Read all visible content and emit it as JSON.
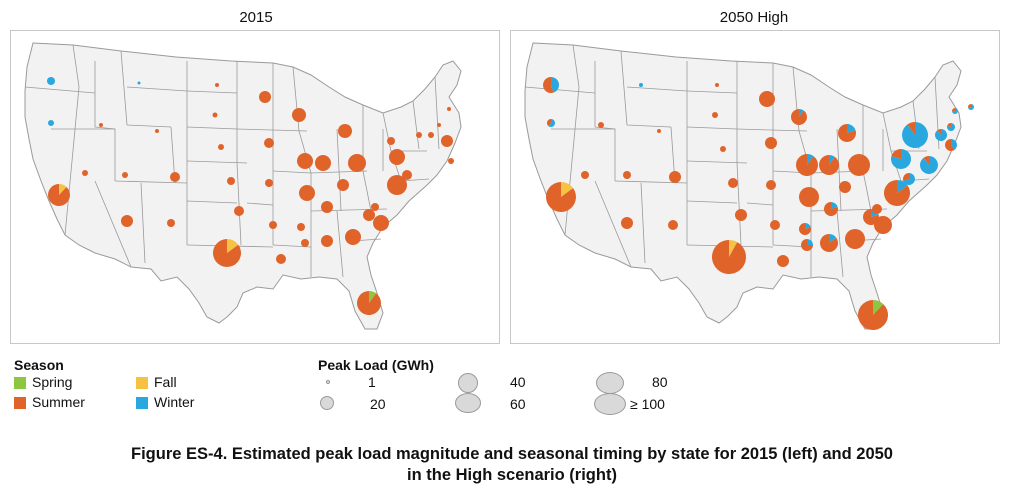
{
  "panels": [
    {
      "title": "2015"
    },
    {
      "title": "2050 High"
    }
  ],
  "legend": {
    "season_title": "Season",
    "seasons": [
      {
        "label": "Spring",
        "color": "#8dc63f"
      },
      {
        "label": "Summer",
        "color": "#e0632a"
      },
      {
        "label": "Fall",
        "color": "#f6c244"
      },
      {
        "label": "Winter",
        "color": "#29a8df"
      }
    ],
    "size_title": "Peak Load (GWh)",
    "sizes": [
      "1",
      "20",
      "40",
      "60",
      "80",
      "≥ 100"
    ]
  },
  "caption": {
    "line1": "Figure ES-4. Estimated peak load magnitude and seasonal timing by state for 2015 (left) and 2050",
    "line2": "in the High scenario (right)"
  },
  "colors": {
    "state_fill": "#f2f2f2",
    "state_border": "#9a9a9a",
    "summer": "#e0632a",
    "fall": "#f6c244",
    "winter": "#29a8df",
    "spring": "#8dc63f"
  }
}
